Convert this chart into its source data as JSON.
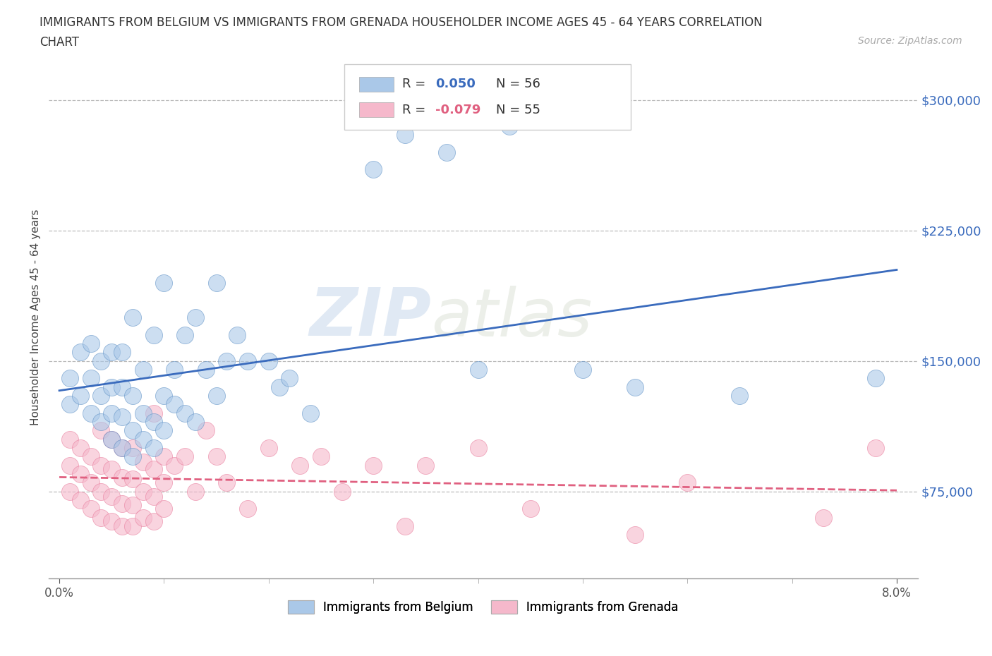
{
  "title_line1": "IMMIGRANTS FROM BELGIUM VS IMMIGRANTS FROM GRENADA HOUSEHOLDER INCOME AGES 45 - 64 YEARS CORRELATION",
  "title_line2": "CHART",
  "source_text": "Source: ZipAtlas.com",
  "ylabel": "Householder Income Ages 45 - 64 years",
  "xlim": [
    -0.001,
    0.082
  ],
  "ylim": [
    25000,
    325000
  ],
  "yticks": [
    75000,
    150000,
    225000,
    300000
  ],
  "ytick_labels": [
    "$75,000",
    "$150,000",
    "$225,000",
    "$300,000"
  ],
  "xticks": [
    0.0,
    0.08
  ],
  "xtick_labels": [
    "0.0%",
    "8.0%"
  ],
  "belgium_color": "#aac8e8",
  "grenada_color": "#f5b8cb",
  "belgium_edge_color": "#5b8ec4",
  "grenada_edge_color": "#e8799a",
  "belgium_line_color": "#3a6bbd",
  "grenada_line_color": "#e06080",
  "legend_R_val_belgium": "0.050",
  "legend_R_val_grenada": "-0.079",
  "legend_N_belgium": "N = 56",
  "legend_N_grenada": "N = 55",
  "legend_label_belgium": "Immigrants from Belgium",
  "legend_label_grenada": "Immigrants from Grenada",
  "watermark_zip": "ZIP",
  "watermark_atlas": "atlas",
  "grid_color": "#bbbbbb",
  "belgium_x": [
    0.001,
    0.001,
    0.002,
    0.002,
    0.003,
    0.003,
    0.003,
    0.004,
    0.004,
    0.004,
    0.005,
    0.005,
    0.005,
    0.005,
    0.006,
    0.006,
    0.006,
    0.006,
    0.007,
    0.007,
    0.007,
    0.007,
    0.008,
    0.008,
    0.008,
    0.009,
    0.009,
    0.009,
    0.01,
    0.01,
    0.01,
    0.011,
    0.011,
    0.012,
    0.012,
    0.013,
    0.013,
    0.014,
    0.015,
    0.015,
    0.016,
    0.017,
    0.018,
    0.02,
    0.021,
    0.022,
    0.024,
    0.03,
    0.033,
    0.037,
    0.04,
    0.043,
    0.05,
    0.055,
    0.065,
    0.078
  ],
  "belgium_y": [
    125000,
    140000,
    130000,
    155000,
    120000,
    140000,
    160000,
    115000,
    130000,
    150000,
    105000,
    120000,
    135000,
    155000,
    100000,
    118000,
    135000,
    155000,
    95000,
    110000,
    130000,
    175000,
    105000,
    120000,
    145000,
    100000,
    115000,
    165000,
    110000,
    130000,
    195000,
    125000,
    145000,
    120000,
    165000,
    115000,
    175000,
    145000,
    130000,
    195000,
    150000,
    165000,
    150000,
    150000,
    135000,
    140000,
    120000,
    260000,
    280000,
    270000,
    145000,
    285000,
    145000,
    135000,
    130000,
    140000
  ],
  "grenada_x": [
    0.001,
    0.001,
    0.001,
    0.002,
    0.002,
    0.002,
    0.003,
    0.003,
    0.003,
    0.004,
    0.004,
    0.004,
    0.004,
    0.005,
    0.005,
    0.005,
    0.005,
    0.006,
    0.006,
    0.006,
    0.006,
    0.007,
    0.007,
    0.007,
    0.007,
    0.008,
    0.008,
    0.008,
    0.009,
    0.009,
    0.009,
    0.009,
    0.01,
    0.01,
    0.01,
    0.011,
    0.012,
    0.013,
    0.014,
    0.015,
    0.016,
    0.018,
    0.02,
    0.023,
    0.025,
    0.027,
    0.03,
    0.033,
    0.035,
    0.04,
    0.045,
    0.055,
    0.06,
    0.073,
    0.078
  ],
  "grenada_y": [
    75000,
    90000,
    105000,
    70000,
    85000,
    100000,
    65000,
    80000,
    95000,
    60000,
    75000,
    90000,
    110000,
    58000,
    72000,
    88000,
    105000,
    55000,
    68000,
    83000,
    100000,
    55000,
    67000,
    82000,
    100000,
    60000,
    75000,
    92000,
    58000,
    72000,
    88000,
    120000,
    65000,
    80000,
    95000,
    90000,
    95000,
    75000,
    110000,
    95000,
    80000,
    65000,
    100000,
    90000,
    95000,
    75000,
    90000,
    55000,
    90000,
    100000,
    65000,
    50000,
    80000,
    60000,
    100000
  ]
}
